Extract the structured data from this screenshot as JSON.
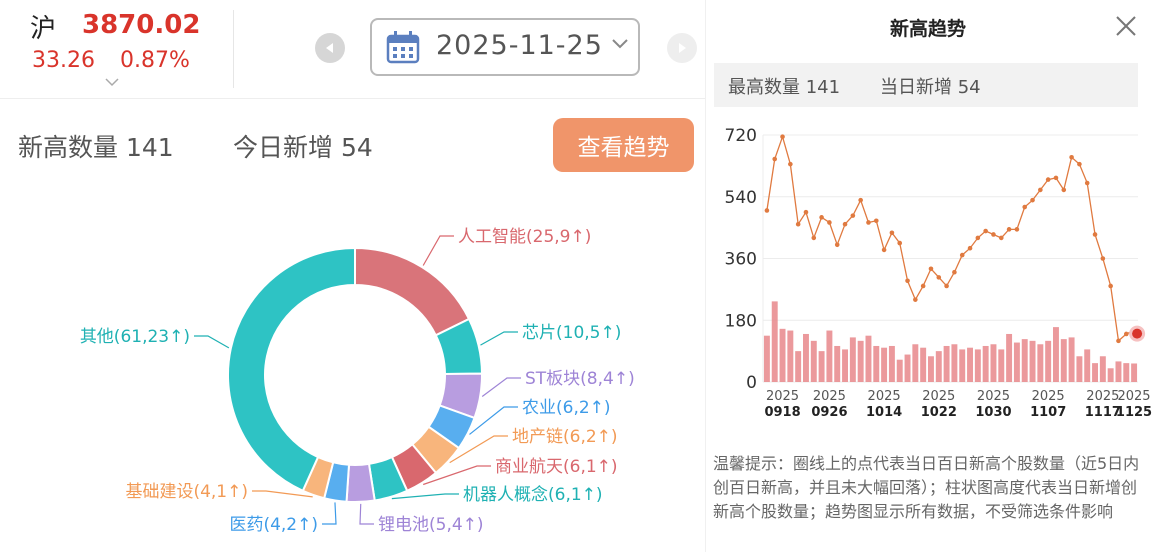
{
  "index": {
    "name": "沪",
    "price": "3870.02",
    "change": "33.26",
    "change_pct": "0.87%",
    "color_up": "#d9342b"
  },
  "date_nav": {
    "date": "2025-11-25"
  },
  "summary": {
    "new_high_label": "新高数量 141",
    "today_new_label": "今日新增 54",
    "trend_button": "查看趋势"
  },
  "panel": {
    "title": "新高趋势",
    "max_label": "最高数量 141",
    "today_label": "当日新增 54",
    "tip": "温馨提示：圈线上的点代表当日百日新高个股数量（近5日内创百日新高，并且未大幅回落）；柱状图高度代表当日新增创新高个股数量；趋势图显示所有数据，不受筛选条件影响"
  },
  "chart_data": [
    {
      "type": "pie",
      "donut": true,
      "categories": [
        "人工智能",
        "芯片",
        "ST板块",
        "农业",
        "地产链",
        "商业航天",
        "机器人概念",
        "锂电池",
        "医药",
        "基础建设",
        "其他"
      ],
      "values": [
        25,
        10,
        8,
        6,
        6,
        6,
        6,
        5,
        4,
        4,
        61
      ],
      "new_today": [
        9,
        5,
        4,
        2,
        2,
        1,
        1,
        4,
        2,
        1,
        23
      ],
      "labels": [
        "人工智能(25,9↑)",
        "芯片(10,5↑)",
        "ST板块(8,4↑)",
        "农业(6,2↑)",
        "地产链(6,2↑)",
        "商业航天(6,1↑)",
        "机器人概念(6,1↑)",
        "锂电池(5,4↑)",
        "医药(4,2↑)",
        "基础建设(4,1↑)",
        "其他(61,23↑)"
      ],
      "colors": [
        "#d9747a",
        "#2ec3c4",
        "#b89de0",
        "#58aeef",
        "#f8b57c",
        "#d9686e",
        "#2ec3c4",
        "#b89de0",
        "#58aeef",
        "#f8b57c",
        "#2ec3c4"
      ]
    },
    {
      "type": "line",
      "ylim": [
        0,
        720
      ],
      "yticks": [
        0,
        180,
        360,
        540,
        720
      ],
      "xtick_labels": [
        [
          "2025",
          "0918"
        ],
        [
          "2025",
          "0926"
        ],
        [
          "2025",
          "1014"
        ],
        [
          "2025",
          "1022"
        ],
        [
          "2025",
          "1030"
        ],
        [
          "2025",
          "1107"
        ],
        [
          "2025",
          "1117"
        ],
        [
          "2025",
          "1125"
        ]
      ],
      "series": [
        {
          "kind": "line",
          "color": "#e07a40",
          "values": [
            500,
            650,
            715,
            635,
            460,
            495,
            420,
            480,
            465,
            400,
            460,
            485,
            530,
            465,
            470,
            385,
            435,
            405,
            295,
            240,
            280,
            330,
            305,
            280,
            320,
            370,
            390,
            420,
            440,
            430,
            420,
            445,
            445,
            510,
            530,
            560,
            590,
            595,
            560,
            655,
            635,
            580,
            430,
            360,
            280,
            120,
            140,
            150
          ]
        },
        {
          "kind": "bar",
          "color": "#e8878b",
          "values": [
            135,
            235,
            155,
            150,
            90,
            140,
            120,
            90,
            150,
            105,
            95,
            130,
            120,
            135,
            105,
            100,
            105,
            65,
            80,
            110,
            100,
            75,
            90,
            105,
            110,
            95,
            100,
            95,
            105,
            110,
            95,
            140,
            115,
            125,
            120,
            110,
            120,
            160,
            125,
            130,
            75,
            95,
            55,
            75,
            40,
            60,
            55,
            54
          ]
        }
      ],
      "highlight": {
        "value": 141,
        "color": "#d9342b"
      }
    }
  ]
}
